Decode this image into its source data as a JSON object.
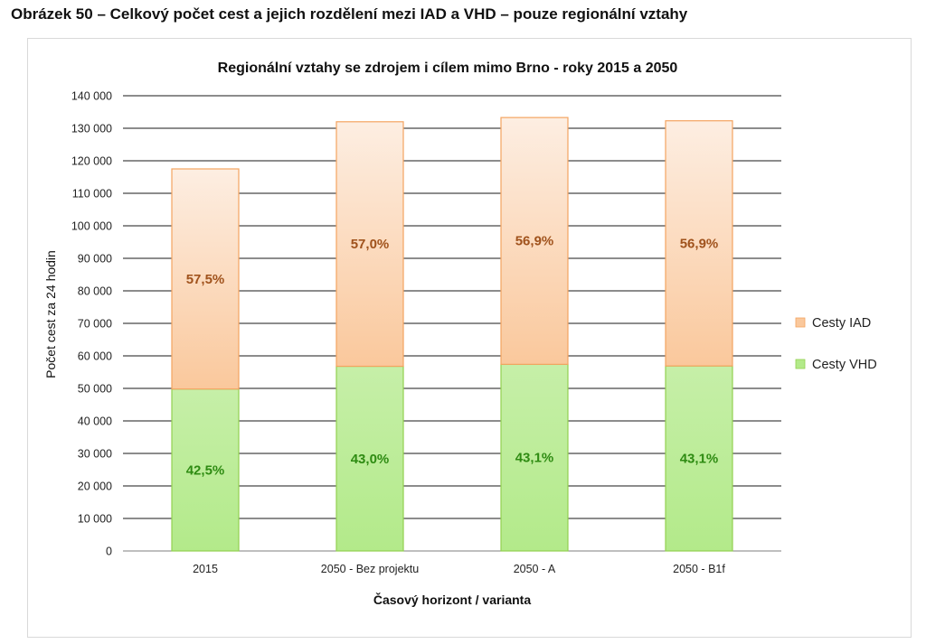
{
  "figure_caption": "Obrázek 50 – Celkový počet cest a jejich rozdělení mezi IAD a VHD – pouze regionální vztahy",
  "chart_data": {
    "type": "bar",
    "stacked": true,
    "title": "Regionální vztahy se zdrojem i cílem mimo Brno - roky 2015 a 2050",
    "xlabel": "Časový horizont / varianta",
    "ylabel": "Počet cest za 24 hodin",
    "ylim": [
      0,
      140000
    ],
    "y_ticks": [
      "0",
      "10 000",
      "20 000",
      "30 000",
      "40 000",
      "50 000",
      "60 000",
      "70 000",
      "80 000",
      "90 000",
      "100 000",
      "110 000",
      "120 000",
      "130 000",
      "140 000"
    ],
    "categories": [
      "2015",
      "2050 - Bez projektu",
      "2050 - A",
      "2050 - B1f"
    ],
    "series": [
      {
        "name": "Cesty VHD",
        "values": [
          49800,
          56800,
          57400,
          56900
        ],
        "labels": [
          "42,5%",
          "43,0%",
          "43,1%",
          "43,1%"
        ],
        "color_top": "#c6efa8",
        "color_bottom": "#b3ea8a",
        "border": "#92d050",
        "label_color": "#2e8b12"
      },
      {
        "name": "Cesty IAD",
        "values": [
          67700,
          75200,
          75900,
          75400
        ],
        "labels": [
          "57,5%",
          "57,0%",
          "56,9%",
          "56,9%"
        ],
        "color_top": "#fdeee2",
        "color_bottom": "#fac89c",
        "border": "#f4a460",
        "label_color": "#a0521c"
      }
    ],
    "legend": [
      "Cesty IAD",
      "Cesty VHD"
    ],
    "legend_position": "right",
    "grid": true
  }
}
